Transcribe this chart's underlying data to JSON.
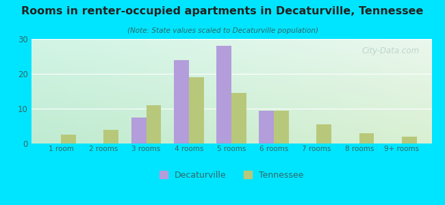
{
  "title": "Rooms in renter-occupied apartments in Decaturville, Tennessee",
  "subtitle": "(Note: State values scaled to Decaturville population)",
  "categories": [
    "1 room",
    "2 rooms",
    "3 rooms",
    "4 rooms",
    "5 rooms",
    "6 rooms",
    "7 rooms",
    "8 rooms",
    "9+ rooms"
  ],
  "decaturville": [
    0,
    0,
    7.5,
    24,
    28,
    9.5,
    0,
    0,
    0
  ],
  "tennessee": [
    2.5,
    4,
    11,
    19,
    14.5,
    9.5,
    5.5,
    3,
    2
  ],
  "decaturville_color": "#b39ddb",
  "tennessee_color": "#b8c87a",
  "background_color": "#00e5ff",
  "title_color": "#222222",
  "subtitle_color": "#336666",
  "tick_color": "#336666",
  "legend_label_decaturville": "Decaturville",
  "legend_label_tennessee": "Tennessee",
  "ylim": [
    0,
    30
  ],
  "yticks": [
    0,
    10,
    20,
    30
  ],
  "bar_width": 0.35,
  "watermark": "City-Data.com"
}
